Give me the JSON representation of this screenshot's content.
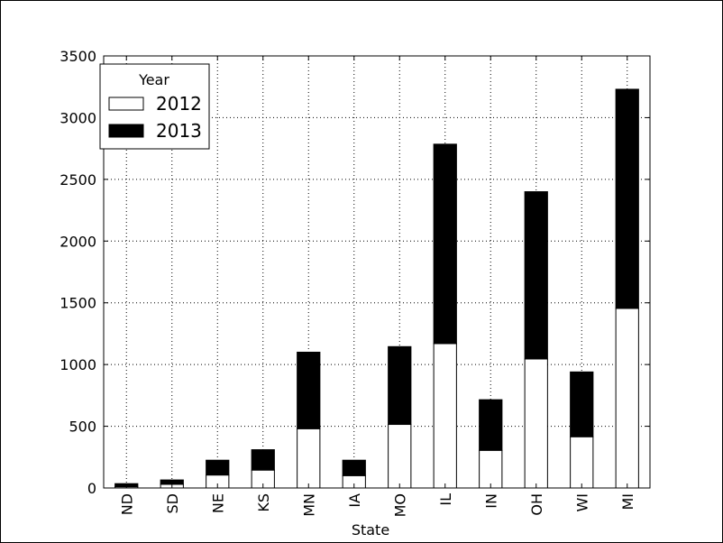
{
  "chart_data": {
    "type": "bar",
    "stacked": true,
    "categories": [
      "ND",
      "SD",
      "NE",
      "KS",
      "MN",
      "IA",
      "MO",
      "IL",
      "IN",
      "OH",
      "WI",
      "MI"
    ],
    "series": [
      {
        "name": "2012",
        "values": [
          10,
          30,
          105,
          145,
          480,
          100,
          515,
          1170,
          305,
          1045,
          415,
          1455
        ],
        "color": "#ffffff"
      },
      {
        "name": "2013",
        "values": [
          25,
          35,
          120,
          165,
          620,
          125,
          630,
          1615,
          410,
          1355,
          525,
          1775
        ],
        "color": "#000000"
      }
    ],
    "xlabel": "State",
    "ylabel": "",
    "ylim": [
      0,
      3500
    ],
    "yticks": [
      0,
      500,
      1000,
      1500,
      2000,
      2500,
      3000,
      3500
    ],
    "grid": true,
    "legend": {
      "title": "Year",
      "placement": "top-left"
    }
  }
}
